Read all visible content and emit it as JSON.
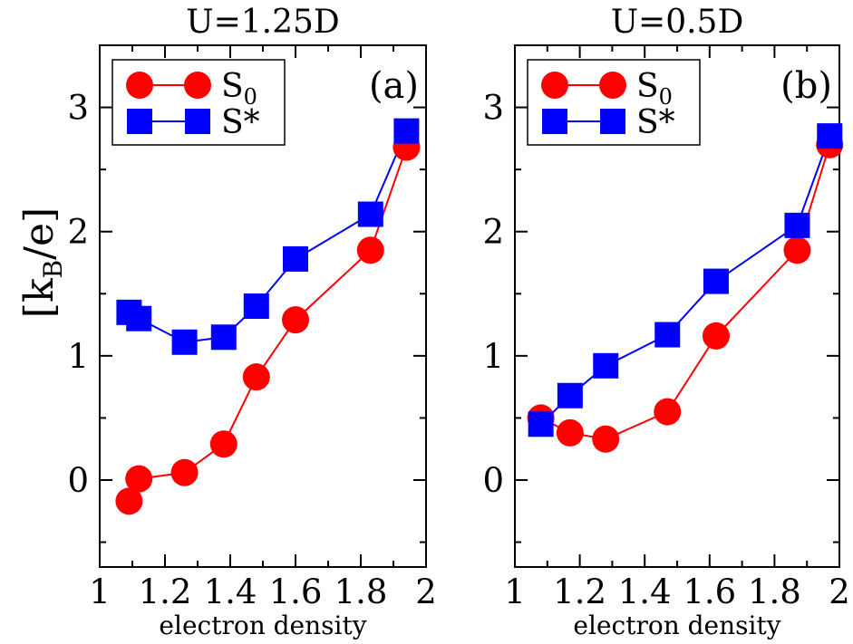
{
  "chart_data": [
    {
      "type": "line",
      "title": "U=1.25D",
      "panel_label": "(a)",
      "xlabel": "electron density",
      "ylabel": "[k_B/e]",
      "ylabel_main": "[k",
      "ylabel_sub": "B",
      "ylabel_tail": "/e]",
      "xlim": [
        1.0,
        2.0
      ],
      "ylim": [
        -0.7,
        3.5
      ],
      "xticks": [
        1,
        1.2,
        1.4,
        1.6,
        1.8,
        2
      ],
      "xtick_labels": [
        "1",
        "1.2",
        "1.4",
        "1.6",
        "1.8",
        "2"
      ],
      "yticks": [
        0,
        1,
        2,
        3
      ],
      "ytick_labels": [
        "0",
        "1",
        "2",
        "3"
      ],
      "grid": false,
      "legend_position": "top-left",
      "series": [
        {
          "name": "S0",
          "label_main": "S",
          "label_sub": "0",
          "color": "#ff0000",
          "marker": "circle",
          "points": [
            {
              "x": 1.09,
              "y": -0.17
            },
            {
              "x": 1.12,
              "y": 0.01
            },
            {
              "x": 1.26,
              "y": 0.06
            },
            {
              "x": 1.38,
              "y": 0.29
            },
            {
              "x": 1.48,
              "y": 0.83
            },
            {
              "x": 1.6,
              "y": 1.29
            },
            {
              "x": 1.83,
              "y": 1.85
            },
            {
              "x": 1.94,
              "y": 2.68
            }
          ]
        },
        {
          "name": "S*",
          "label_main": "S*",
          "label_sub": "",
          "color": "#0000ff",
          "marker": "square",
          "points": [
            {
              "x": 1.09,
              "y": 1.35
            },
            {
              "x": 1.12,
              "y": 1.3
            },
            {
              "x": 1.26,
              "y": 1.11
            },
            {
              "x": 1.38,
              "y": 1.15
            },
            {
              "x": 1.48,
              "y": 1.4
            },
            {
              "x": 1.6,
              "y": 1.78
            },
            {
              "x": 1.83,
              "y": 2.14
            },
            {
              "x": 1.94,
              "y": 2.81
            }
          ]
        }
      ]
    },
    {
      "type": "line",
      "title": "U=0.5D",
      "panel_label": "(b)",
      "xlabel": "electron density",
      "xlim": [
        1.0,
        2.0
      ],
      "ylim": [
        -0.7,
        3.5
      ],
      "xticks": [
        1,
        1.2,
        1.4,
        1.6,
        1.8,
        2
      ],
      "xtick_labels": [
        "1",
        "1.2",
        "1.4",
        "1.6",
        "1.8",
        "2"
      ],
      "yticks": [
        0,
        1,
        2,
        3
      ],
      "ytick_labels": [
        "0",
        "1",
        "2",
        "3"
      ],
      "grid": false,
      "legend_position": "top-left",
      "series": [
        {
          "name": "S0",
          "label_main": "S",
          "label_sub": "0",
          "color": "#ff0000",
          "marker": "circle",
          "points": [
            {
              "x": 1.08,
              "y": 0.5
            },
            {
              "x": 1.17,
              "y": 0.38
            },
            {
              "x": 1.28,
              "y": 0.33
            },
            {
              "x": 1.47,
              "y": 0.55
            },
            {
              "x": 1.62,
              "y": 1.16
            },
            {
              "x": 1.87,
              "y": 1.85
            },
            {
              "x": 1.97,
              "y": 2.7
            }
          ]
        },
        {
          "name": "S*",
          "label_main": "S*",
          "label_sub": "",
          "color": "#0000ff",
          "marker": "square",
          "points": [
            {
              "x": 1.08,
              "y": 0.45
            },
            {
              "x": 1.17,
              "y": 0.68
            },
            {
              "x": 1.28,
              "y": 0.92
            },
            {
              "x": 1.47,
              "y": 1.17
            },
            {
              "x": 1.62,
              "y": 1.6
            },
            {
              "x": 1.87,
              "y": 2.05
            },
            {
              "x": 1.97,
              "y": 2.77
            }
          ]
        }
      ]
    }
  ]
}
